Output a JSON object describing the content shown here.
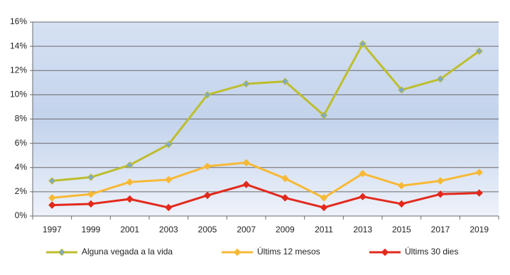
{
  "chart_data": {
    "type": "line",
    "categories": [
      "1997",
      "1999",
      "2001",
      "2003",
      "2005",
      "2007",
      "2009",
      "2011",
      "2013",
      "2015",
      "2017",
      "2019"
    ],
    "series": [
      {
        "name": "Alguna vegada a la vida",
        "color": "#bdbd2c",
        "marker_fill": "#7fa9c9",
        "values": [
          2.9,
          3.2,
          4.2,
          5.9,
          10.0,
          10.9,
          11.1,
          8.3,
          14.2,
          10.4,
          11.3,
          13.6
        ]
      },
      {
        "name": "Últims 12 mesos",
        "color": "#f7b935",
        "marker_fill": "#f7b935",
        "values": [
          1.5,
          1.8,
          2.8,
          3.0,
          4.1,
          4.4,
          3.1,
          1.5,
          3.5,
          2.5,
          2.9,
          3.6
        ]
      },
      {
        "name": "Últims 30 dies",
        "color": "#e2291c",
        "marker_fill": "#e2291c",
        "values": [
          0.9,
          1.0,
          1.4,
          0.7,
          1.7,
          2.6,
          1.5,
          0.7,
          1.6,
          1.0,
          1.8,
          1.9
        ]
      }
    ],
    "ylim": [
      0,
      16
    ],
    "yticks": [
      {
        "value": 0,
        "label": "0%"
      },
      {
        "value": 2,
        "label": "2%"
      },
      {
        "value": 4,
        "label": "4%"
      },
      {
        "value": 6,
        "label": "6%"
      },
      {
        "value": 8,
        "label": "8%"
      },
      {
        "value": 10,
        "label": "10%"
      },
      {
        "value": 12,
        "label": "12%"
      },
      {
        "value": 14,
        "label": "14%"
      },
      {
        "value": 16,
        "label": "16%"
      }
    ],
    "grid": true,
    "legend": "bottom"
  }
}
